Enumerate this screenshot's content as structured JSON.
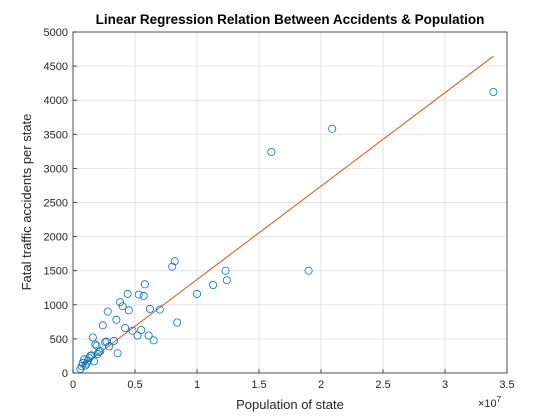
{
  "chart_data": {
    "type": "scatter",
    "title": "Linear Regression Relation Between Accidents & Population",
    "xlabel": "Population of state",
    "ylabel": "Fatal traffic accidents per state",
    "x_exponent_label": "×10",
    "x_exponent_power": "7",
    "xlim": [
      0,
      3.5
    ],
    "ylim": [
      0,
      5000
    ],
    "x_ticks": [
      "0",
      "0.5",
      "1",
      "1.5",
      "2",
      "2.5",
      "3",
      "3.5"
    ],
    "y_ticks": [
      "0",
      "500",
      "1000",
      "1500",
      "2000",
      "2500",
      "3000",
      "3500",
      "4000",
      "4500",
      "5000"
    ],
    "grid": true,
    "colors": {
      "points": "#0072BD",
      "fit_line": "#D95319",
      "grid": "#e3e3e3",
      "axes": "#262626"
    },
    "series": [
      {
        "kind": "points",
        "x": [
          0.06,
          0.08,
          0.07,
          0.09,
          0.1,
          0.12,
          0.14,
          0.11,
          0.13,
          0.15,
          0.16,
          0.18,
          0.19,
          0.21,
          0.22,
          0.24,
          0.26,
          0.28,
          0.29,
          0.33,
          0.35,
          0.38,
          0.4,
          0.42,
          0.44,
          0.45,
          0.52,
          0.53,
          0.55,
          0.57,
          0.58,
          0.61,
          0.62,
          0.65,
          0.7,
          0.8,
          0.82,
          0.84,
          1.0,
          1.13,
          1.23,
          1.24,
          1.6,
          1.9,
          2.09,
          3.39,
          0.2,
          0.27,
          0.36,
          0.48,
          0.17
        ],
        "y": [
          60,
          150,
          100,
          200,
          110,
          180,
          250,
          140,
          220,
          260,
          520,
          420,
          400,
          310,
          320,
          700,
          450,
          900,
          390,
          470,
          780,
          1040,
          980,
          660,
          1160,
          920,
          550,
          1150,
          630,
          1130,
          1300,
          550,
          940,
          480,
          930,
          1560,
          1640,
          740,
          1160,
          1290,
          1500,
          1360,
          3240,
          1500,
          3580,
          4120,
          280,
          460,
          290,
          620,
          170
        ]
      },
      {
        "kind": "fit_line",
        "x": [
          0.06,
          3.39
        ],
        "y": [
          82,
          4645
        ]
      }
    ]
  }
}
